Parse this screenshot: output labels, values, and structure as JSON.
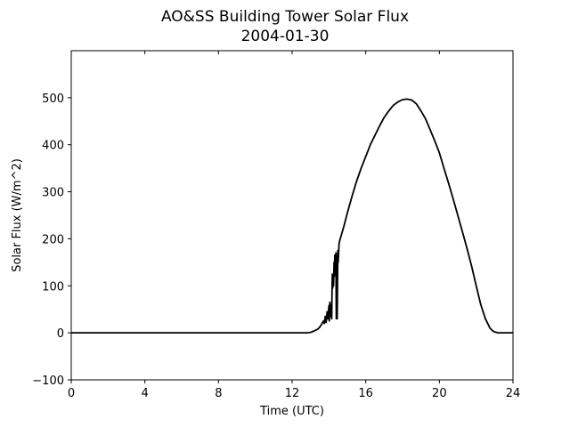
{
  "chart_data": {
    "type": "line",
    "title": "AO&SS Building Tower Solar Flux",
    "subtitle": "2004-01-30",
    "xlabel": "Time (UTC)",
    "ylabel": "Solar Flux (W/m^2)",
    "xlim": [
      0,
      24
    ],
    "ylim": [
      -100,
      600
    ],
    "xticks": [
      0,
      4,
      8,
      12,
      16,
      20,
      24
    ],
    "yticks": [
      -100,
      0,
      100,
      200,
      300,
      400,
      500
    ],
    "grid": false,
    "legend": "none",
    "line_color": "#000000",
    "series": [
      {
        "x": [
          0,
          2,
          4,
          6,
          8,
          10,
          12,
          12.8,
          13.0,
          13.2,
          13.4,
          13.5,
          13.6,
          13.7,
          13.75,
          13.8,
          13.85,
          13.9,
          13.95,
          14.0,
          14.02,
          14.05,
          14.08,
          14.1,
          14.12,
          14.15,
          14.18,
          14.2,
          14.22,
          14.25,
          14.28,
          14.3,
          14.32,
          14.35,
          14.38,
          14.4,
          14.42,
          14.45,
          14.48,
          14.5,
          14.55,
          14.6,
          14.8,
          15.0,
          15.25,
          15.5,
          15.75,
          16.0,
          16.25,
          16.5,
          16.75,
          17.0,
          17.25,
          17.5,
          17.75,
          18.0,
          18.25,
          18.5,
          18.75,
          19.0,
          19.25,
          19.5,
          19.75,
          20.0,
          20.25,
          20.5,
          20.75,
          21.0,
          21.25,
          21.5,
          21.75,
          22.0,
          22.25,
          22.5,
          22.75,
          22.9,
          23.0,
          23.1,
          23.2,
          23.4,
          24
        ],
        "y": [
          0,
          0,
          0,
          0,
          0,
          0,
          0,
          0,
          1,
          4,
          8,
          12,
          18,
          25,
          20,
          35,
          22,
          45,
          30,
          58,
          25,
          65,
          35,
          40,
          60,
          30,
          125,
          95,
          120,
          100,
          150,
          120,
          165,
          140,
          170,
          30,
          165,
          30,
          175,
          150,
          190,
          198,
          225,
          255,
          290,
          322,
          350,
          375,
          400,
          420,
          440,
          458,
          472,
          484,
          491,
          496,
          497,
          495,
          487,
          472,
          455,
          432,
          408,
          383,
          350,
          318,
          285,
          250,
          215,
          180,
          142,
          100,
          60,
          30,
          10,
          4,
          2,
          1,
          0,
          0,
          0
        ]
      }
    ]
  }
}
